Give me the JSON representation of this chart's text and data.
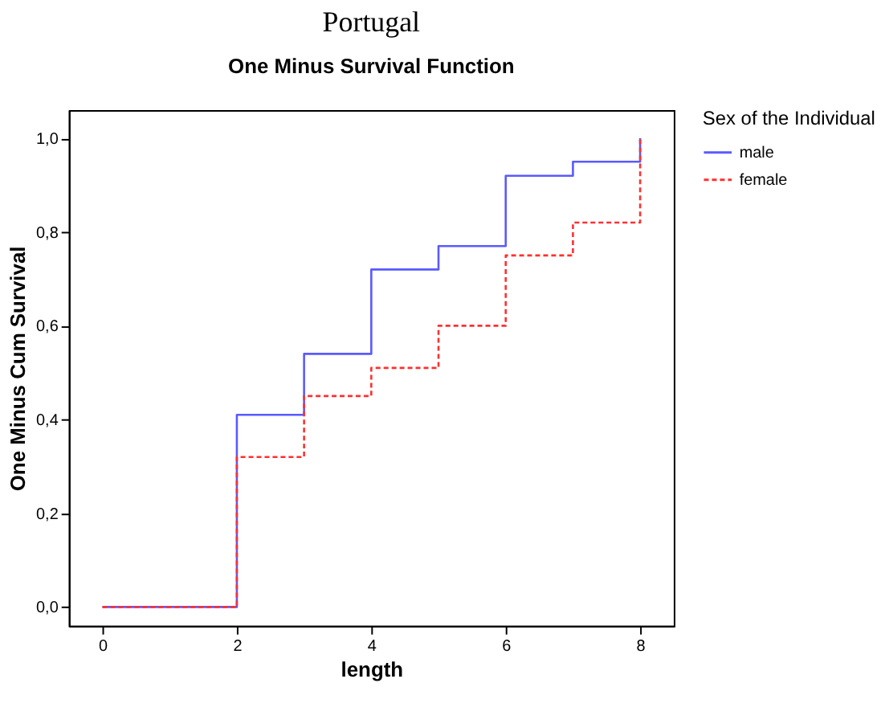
{
  "chart_data": {
    "type": "step",
    "title": "Portugal",
    "subtitle": "One Minus Survival Function",
    "xlabel": "length",
    "ylabel": "One Minus Cum Survival",
    "legend_title": "Sex of the Individual",
    "x": [
      0,
      2,
      3,
      4,
      5,
      6,
      7,
      8
    ],
    "series": [
      {
        "name": "male",
        "color": "#5a5aff",
        "line_style": "solid",
        "values": [
          0,
          0.41,
          0.54,
          0.72,
          0.77,
          0.92,
          0.95,
          1.0
        ]
      },
      {
        "name": "female",
        "color": "#ff3030",
        "line_style": "dashed",
        "values": [
          0,
          0.32,
          0.45,
          0.51,
          0.6,
          0.75,
          0.82,
          1.0
        ]
      }
    ],
    "xlim": [
      -0.5,
      8.5
    ],
    "xticks": [
      0,
      2,
      4,
      6,
      8
    ],
    "ylim": [
      -0.04,
      1.06
    ],
    "yticks": [
      {
        "value": 0,
        "label": "0,0"
      },
      {
        "value": 0.2,
        "label": "0,2"
      },
      {
        "value": 0.4,
        "label": "0,4"
      },
      {
        "value": 0.6,
        "label": "0,6"
      },
      {
        "value": 0.8,
        "label": "0,8"
      },
      {
        "value": 1.0,
        "label": "1,0"
      }
    ],
    "grid": false,
    "legend": "top right",
    "marker": "none"
  }
}
